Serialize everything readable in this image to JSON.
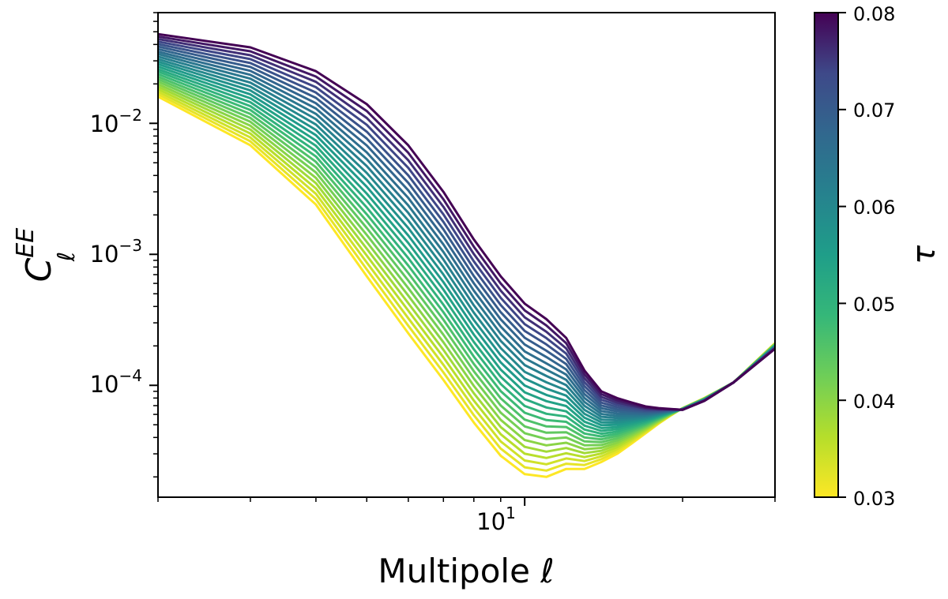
{
  "chart_data": {
    "type": "line",
    "xlabel": "Multipole ℓ",
    "ylabel_main": "C",
    "ylabel_sub": "ℓ",
    "ylabel_sup": "EE",
    "xscale": "log",
    "yscale": "log",
    "xlim": [
      2,
      30
    ],
    "ylim": [
      1.4e-05,
      0.07
    ],
    "grid": false,
    "x_tick_labels": [
      {
        "value": 10,
        "base": "10",
        "exp": "1"
      }
    ],
    "y_tick_labels": [
      {
        "value": 0.01,
        "base": "10",
        "exp": "−2"
      },
      {
        "value": 0.001,
        "base": "10",
        "exp": "−3"
      },
      {
        "value": 0.0001,
        "base": "10",
        "exp": "−4"
      }
    ],
    "colorbar": {
      "label": "τ",
      "range": [
        0.03,
        0.08
      ],
      "ticks": [
        "0.03",
        "0.04",
        "0.05",
        "0.06",
        "0.07",
        "0.08"
      ],
      "colormap": "viridis"
    },
    "parameter": "tau",
    "parameter_values": {
      "start": 0.03,
      "end": 0.08,
      "count": 26
    },
    "x": [
      2,
      3,
      4,
      5,
      6,
      7,
      8,
      9,
      10,
      11,
      12,
      13,
      14,
      15,
      16,
      17,
      18,
      19,
      20,
      22,
      25,
      30
    ],
    "boundary_series": [
      {
        "tau": 0.03,
        "values": [
          0.016,
          0.0068,
          0.0024,
          0.00068,
          0.00025,
          0.00011,
          5.2e-05,
          2.9e-05,
          2.1e-05,
          2e-05,
          2.3e-05,
          2.3e-05,
          2.6e-05,
          3e-05,
          3.6e-05,
          4.3e-05,
          5.1e-05,
          5.9e-05,
          6.7e-05,
          8e-05,
          0.000105,
          0.00021
        ]
      },
      {
        "tau": 0.08,
        "values": [
          0.048,
          0.038,
          0.025,
          0.014,
          0.0068,
          0.003,
          0.0013,
          0.00068,
          0.00042,
          0.00032,
          0.00023,
          0.00013,
          9e-05,
          8e-05,
          7.4e-05,
          6.9e-05,
          6.7e-05,
          6.6e-05,
          6.5e-05,
          7.6e-05,
          0.000105,
          0.00019
        ]
      }
    ]
  }
}
